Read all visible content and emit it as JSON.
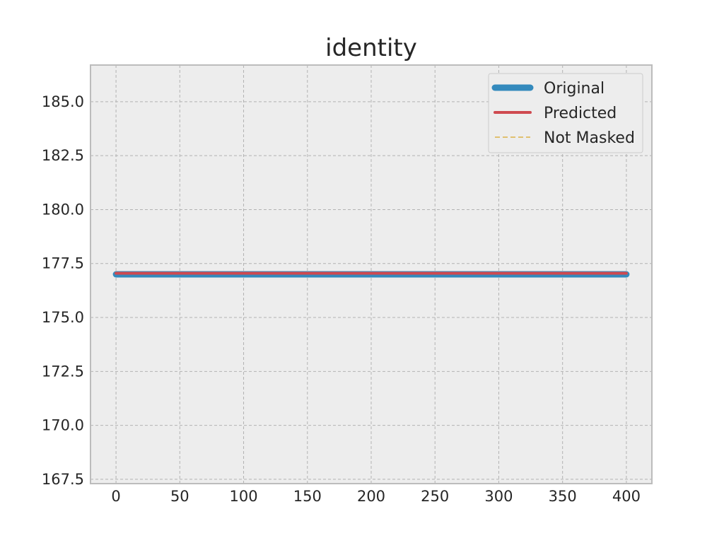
{
  "chart_data": {
    "type": "line",
    "title": "identity",
    "xlabel": "",
    "ylabel": "",
    "xlim": [
      -20,
      420
    ],
    "ylim": [
      167.3,
      186.7
    ],
    "x_ticks": [
      0,
      50,
      100,
      150,
      200,
      250,
      300,
      350,
      400
    ],
    "y_ticks": [
      167.5,
      170.0,
      172.5,
      175.0,
      177.5,
      180.0,
      182.5,
      185.0
    ],
    "y_tick_labels": [
      "167.5",
      "170.0",
      "172.5",
      "175.0",
      "177.5",
      "180.0",
      "182.5",
      "185.0"
    ],
    "grid": true,
    "legend_placement": "top-right",
    "series": [
      {
        "name": "Original",
        "x": [
          0,
          400
        ],
        "y": [
          177.0,
          177.0
        ],
        "color": "#348ABD",
        "style": "solid-thick"
      },
      {
        "name": "Predicted",
        "x": [
          0,
          400
        ],
        "y": [
          177.05,
          177.05
        ],
        "color": "#CF4A50",
        "style": "solid"
      },
      {
        "name": "Not Masked",
        "x": [],
        "y": [],
        "color": "#E0C070",
        "style": "dashed"
      }
    ]
  }
}
